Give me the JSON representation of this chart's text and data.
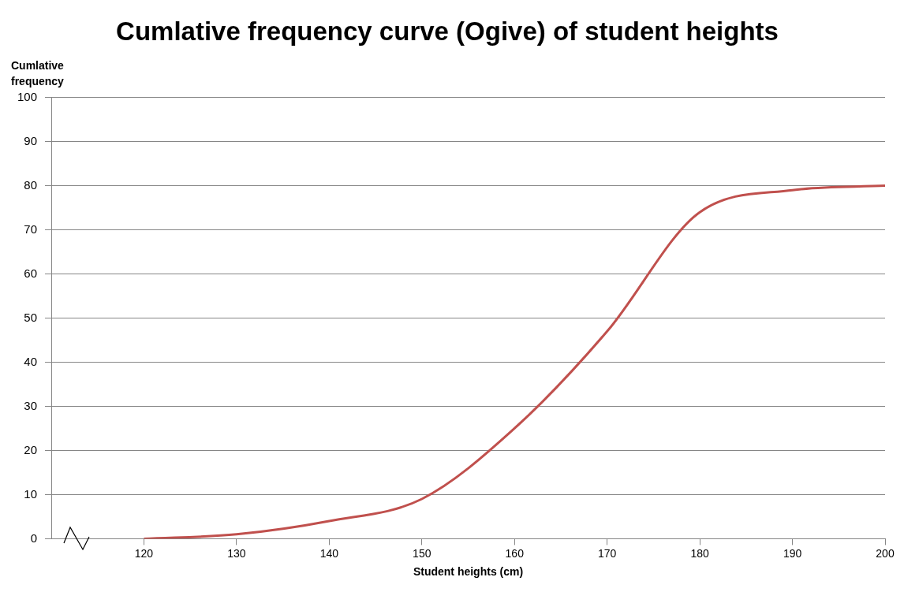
{
  "chart_data": {
    "type": "line",
    "title": "Cumlative frequency curve (Ogive) of student heights",
    "xlabel": "Student heights (cm)",
    "ylabel": "Cumlative frequency",
    "x": [
      120,
      130,
      140,
      150,
      160,
      170,
      180,
      190,
      200
    ],
    "series": [
      {
        "color": "#c0504d",
        "values": [
          0,
          1,
          4,
          9,
          25,
          47,
          74,
          79,
          80
        ]
      }
    ],
    "xlim": [
      110,
      200
    ],
    "xticks": [
      120,
      130,
      140,
      150,
      160,
      170,
      180,
      190,
      200
    ],
    "ylim": [
      0,
      100
    ],
    "yticks": [
      0,
      10,
      20,
      30,
      40,
      50,
      60,
      70,
      80,
      90,
      100
    ],
    "grid": "y",
    "legend": false,
    "marker": "none",
    "line_style": "solid"
  }
}
